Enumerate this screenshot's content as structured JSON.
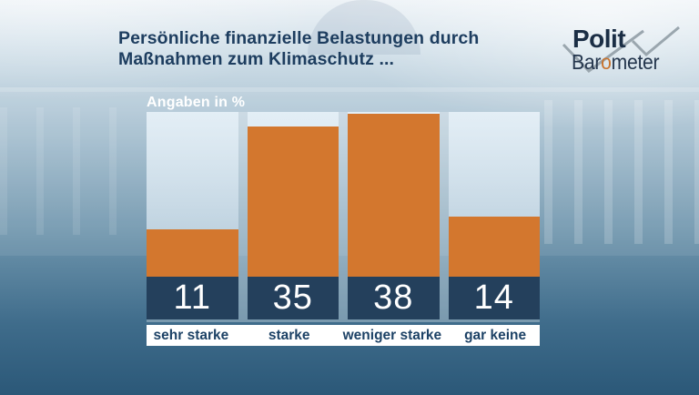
{
  "title": {
    "line1": "Persönliche finanzielle Belastungen durch",
    "line2": "Maßnahmen zum Klimaschutz ..."
  },
  "logo": {
    "top": "Polit",
    "bottom_prefix": "Bar",
    "bottom_o": "o",
    "bottom_suffix": "meter"
  },
  "chart_data": {
    "type": "bar",
    "title": "Persönliche finanzielle Belastungen durch Maßnahmen zum Klimaschutz ...",
    "unit_label": "Angaben in %",
    "categories": [
      "sehr starke",
      "starke",
      "weniger starke",
      "gar keine"
    ],
    "values": [
      11,
      35,
      38,
      14
    ],
    "ylim": [
      0,
      38.5
    ],
    "grid": false,
    "legend": "none",
    "bar_color": "#d3772e",
    "value_band_color": "#24405c",
    "value_text_color": "#ffffff",
    "category_text_color": "#1d4266",
    "category_strip_color": "#ffffff",
    "unit_label_color": "#ffffff"
  },
  "colors": {
    "title_text": "#1d3d5f",
    "background_top": "#eef3f7",
    "background_bottom": "#2b5878",
    "logo_text": "#1b2e45",
    "logo_o_accent": "#c9742f",
    "logo_checkmark": "#9aa6ae"
  }
}
